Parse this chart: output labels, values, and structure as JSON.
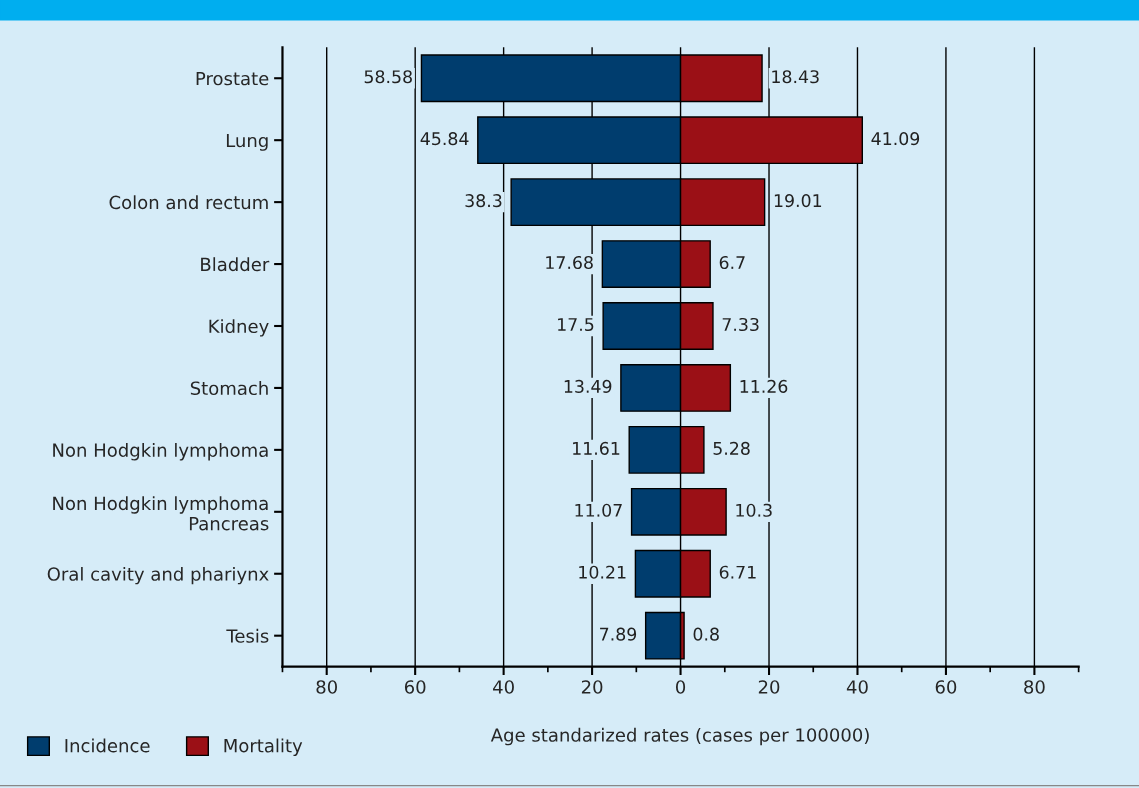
{
  "chart_data": {
    "type": "bar",
    "orientation": "horizontal",
    "xlabel": "Age standarized rates (cases per 100000)",
    "categories": [
      "Prostate",
      "Lung",
      "Colon and rectum",
      "Bladder",
      "Kidney",
      "Stomach",
      "Non Hodgkin lymphoma",
      "Non Hodgkin lymphoma\nPancreas",
      "Oral cavity and phariynx",
      "Tesis"
    ],
    "series": [
      {
        "name": "Incidence",
        "color": "#003d6e",
        "values": [
          58.58,
          45.84,
          38.3,
          17.68,
          17.5,
          13.49,
          11.61,
          11.07,
          10.21,
          7.89
        ],
        "base": [
          -58.58,
          -45.84,
          -38.3,
          -17.68,
          -17.5,
          -13.49,
          -11.61,
          -11.07,
          -10.21,
          -7.89
        ],
        "value_labels": [
          "58.58",
          "45.84",
          "38.3",
          "17.68",
          "17.5",
          "13.49",
          "11.61",
          "11.07",
          "10.21",
          "7.89"
        ]
      },
      {
        "name": "Mortality",
        "color": "#9b1016",
        "values": [
          18.43,
          41.09,
          19.01,
          6.7,
          7.33,
          11.26,
          5.28,
          10.3,
          6.71,
          0.8
        ],
        "value_labels": [
          "18.43",
          "41.09",
          "19.01",
          "6.7",
          "7.33",
          "11.26",
          "5.28",
          "10.3",
          "6.71",
          "0.8"
        ]
      }
    ],
    "xlim": [
      -90,
      90
    ],
    "xticks": [
      {
        "value": -80,
        "label": "80"
      },
      {
        "value": -60,
        "label": "60"
      },
      {
        "value": -40,
        "label": "40"
      },
      {
        "value": -20,
        "label": "20"
      },
      0,
      20,
      40,
      60,
      80
    ],
    "grid": "x",
    "legend": "bottom left"
  }
}
